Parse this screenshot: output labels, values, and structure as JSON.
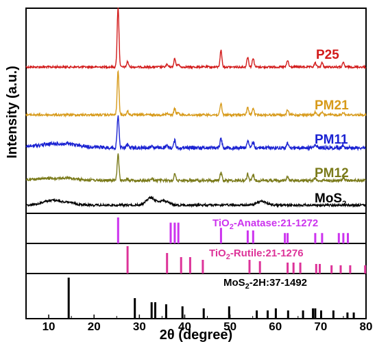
{
  "chart_data": {
    "type": "line",
    "xlabel": "2θ (degree)",
    "ylabel": "Intensity (a.u.)",
    "xlim": [
      5,
      80
    ],
    "xticks": [
      10,
      20,
      30,
      40,
      50,
      60,
      70,
      80
    ],
    "grid": false,
    "series": [
      {
        "name": "P25",
        "color": "#d21a1a",
        "peaks": [
          [
            25.3,
            100
          ],
          [
            27.4,
            9
          ],
          [
            36.1,
            4
          ],
          [
            37.8,
            14
          ],
          [
            38.6,
            5
          ],
          [
            48.0,
            28
          ],
          [
            53.9,
            17
          ],
          [
            55.1,
            15
          ],
          [
            62.7,
            11
          ],
          [
            68.8,
            7
          ],
          [
            70.3,
            7
          ],
          [
            75.0,
            7
          ]
        ]
      },
      {
        "name": "PM21",
        "color": "#d79a1a",
        "peaks": [
          [
            25.3,
            100
          ],
          [
            27.4,
            8
          ],
          [
            36.1,
            3
          ],
          [
            37.8,
            15
          ],
          [
            38.6,
            5
          ],
          [
            48.0,
            26
          ],
          [
            53.9,
            17
          ],
          [
            55.1,
            15
          ],
          [
            62.7,
            11
          ],
          [
            68.8,
            6
          ],
          [
            70.3,
            6
          ],
          [
            75.0,
            6
          ]
        ]
      },
      {
        "name": "PM11",
        "color": "#1a22d2",
        "peaks": [
          [
            14.2,
            4
          ],
          [
            25.3,
            100
          ],
          [
            27.4,
            10
          ],
          [
            32.8,
            7
          ],
          [
            36.1,
            5
          ],
          [
            37.8,
            22
          ],
          [
            48.0,
            30
          ],
          [
            53.9,
            22
          ],
          [
            55.1,
            17
          ],
          [
            62.7,
            13
          ],
          [
            68.8,
            9
          ],
          [
            75.0,
            9
          ]
        ]
      },
      {
        "name": "PM12",
        "color": "#7a7a1a",
        "peaks": [
          [
            14.2,
            4
          ],
          [
            25.3,
            100
          ],
          [
            27.4,
            8
          ],
          [
            32.8,
            8
          ],
          [
            37.8,
            26
          ],
          [
            48.0,
            32
          ],
          [
            53.9,
            26
          ],
          [
            55.1,
            20
          ],
          [
            62.7,
            16
          ],
          [
            68.8,
            10
          ],
          [
            75.0,
            10
          ]
        ]
      },
      {
        "name": "MoS2",
        "color": "#000000",
        "peaks": [
          [
            10.5,
            40
          ],
          [
            14.2,
            20
          ],
          [
            32.5,
            65
          ],
          [
            35.5,
            40
          ],
          [
            57.0,
            35
          ]
        ]
      }
    ],
    "references": [
      {
        "name": "TiO2-Anatase:21-1272",
        "color": "#cc33ee",
        "lines": [
          [
            25.3,
            100
          ],
          [
            36.9,
            80
          ],
          [
            37.8,
            80
          ],
          [
            38.6,
            80
          ],
          [
            48.0,
            60
          ],
          [
            53.9,
            50
          ],
          [
            55.1,
            50
          ],
          [
            62.1,
            40
          ],
          [
            62.7,
            40
          ],
          [
            68.8,
            40
          ],
          [
            70.3,
            40
          ],
          [
            74.0,
            40
          ],
          [
            75.0,
            40
          ],
          [
            76.0,
            40
          ]
        ]
      },
      {
        "name": "TiO2-Rutile:21-1276",
        "color": "#dd3399",
        "lines": [
          [
            27.4,
            100
          ],
          [
            36.1,
            75
          ],
          [
            39.2,
            60
          ],
          [
            41.2,
            60
          ],
          [
            44.0,
            50
          ],
          [
            54.3,
            50
          ],
          [
            56.6,
            45
          ],
          [
            62.7,
            40
          ],
          [
            64.0,
            40
          ],
          [
            65.5,
            40
          ],
          [
            69.0,
            35
          ],
          [
            69.8,
            35
          ],
          [
            72.4,
            30
          ],
          [
            74.4,
            30
          ],
          [
            76.5,
            30
          ],
          [
            79.8,
            30
          ]
        ]
      },
      {
        "name": "MoS2-2H:37-1492",
        "color": "#000000",
        "lines": [
          [
            14.4,
            100
          ],
          [
            29.0,
            50
          ],
          [
            32.7,
            40
          ],
          [
            33.5,
            40
          ],
          [
            35.9,
            35
          ],
          [
            39.5,
            30
          ],
          [
            44.2,
            25
          ],
          [
            49.8,
            30
          ],
          [
            55.9,
            20
          ],
          [
            58.3,
            20
          ],
          [
            60.1,
            25
          ],
          [
            62.8,
            20
          ],
          [
            66.1,
            20
          ],
          [
            68.3,
            25
          ],
          [
            68.8,
            25
          ],
          [
            70.1,
            20
          ],
          [
            72.8,
            20
          ],
          [
            75.9,
            15
          ],
          [
            77.3,
            15
          ]
        ]
      }
    ]
  },
  "labels": {
    "p25": "P25",
    "pm21": "PM21",
    "pm11": "PM11",
    "pm12": "PM12",
    "mos2_main": "MoS",
    "mos2_sub": "2",
    "anatase_a": "TiO",
    "anatase_sub": "2",
    "anatase_b": "-Anatase:21-1272",
    "rutile_a": "TiO",
    "rutile_sub": "2",
    "rutile_b": "-Rutile:21-1276",
    "mos2h_a": "MoS",
    "mos2h_sub": "2",
    "mos2h_b": "-2H:37-1492"
  }
}
